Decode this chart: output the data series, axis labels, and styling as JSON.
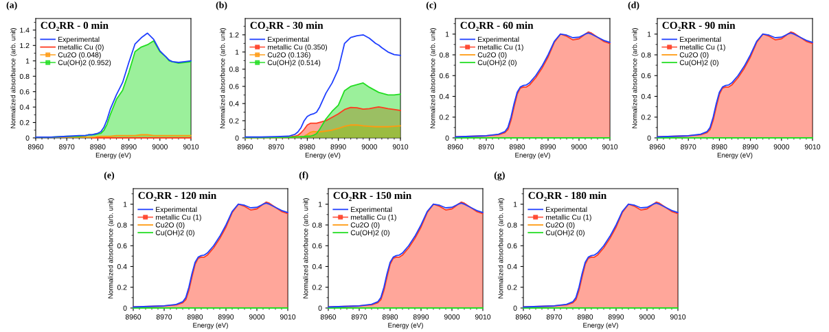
{
  "chart_data": [
    {
      "type": "area",
      "title": "CO₂RR - 0 min",
      "annotations": [
        "(a)"
      ],
      "xlabel": "Energy (eV)",
      "ylabel": "Normalized absorbance (arb. unit)",
      "legend": "top left",
      "x": [
        8960,
        8965,
        8970,
        8974,
        8976,
        8977,
        8978,
        8979,
        8980,
        8981,
        8982,
        8983,
        8984,
        8986,
        8988,
        8990,
        8992,
        8994,
        8996,
        8998,
        9000,
        9002,
        9003,
        9004,
        9006,
        9008,
        9010
      ],
      "xlim": [
        8960,
        9010
      ],
      "xticks": [
        8960,
        8970,
        8980,
        8990,
        9000,
        9010
      ],
      "ylim": [
        0,
        1.55
      ],
      "yticks": [
        0,
        0.2,
        0.4,
        0.6,
        0.8,
        1,
        1.2,
        1.4
      ],
      "series": [
        {
          "name": "Experimental",
          "type": "line",
          "color": "#1f3fff",
          "values": [
            0.01,
            0.01,
            0.02,
            0.03,
            0.03,
            0.04,
            0.04,
            0.05,
            0.06,
            0.08,
            0.14,
            0.24,
            0.37,
            0.56,
            0.72,
            0.98,
            1.22,
            1.3,
            1.36,
            1.28,
            1.13,
            1.05,
            1.01,
            0.99,
            0.98,
            0.99,
            1.0
          ]
        },
        {
          "name": "metallic Cu (0)",
          "type": "line",
          "color": "#ff3a1f",
          "values": [
            null,
            null,
            null,
            null,
            null,
            null,
            0,
            0,
            0,
            0,
            0,
            0,
            0,
            0,
            0,
            0,
            0,
            0,
            0,
            0,
            0,
            0,
            0,
            0,
            0,
            0,
            0
          ]
        },
        {
          "name": "Cu2O (0.048)",
          "color": "#ff9a10",
          "values": [
            0.01,
            0.01,
            0.01,
            0.01,
            0.01,
            0.01,
            0.01,
            0.01,
            0.02,
            0.02,
            0.02,
            0.02,
            0.02,
            0.03,
            0.03,
            0.03,
            0.03,
            0.04,
            0.04,
            0.03,
            0.03,
            0.03,
            0.03,
            0.03,
            0.03,
            0.03,
            0.03
          ]
        },
        {
          "name": "Cu(OH)2 (0.952)",
          "color": "#22dd22",
          "values": [
            0.01,
            0.01,
            0.02,
            0.02,
            0.03,
            0.04,
            0.04,
            0.04,
            0.05,
            0.06,
            0.1,
            0.18,
            0.3,
            0.5,
            0.62,
            0.85,
            1.12,
            1.18,
            1.21,
            1.26,
            1.12,
            1.05,
            1.0,
            0.99,
            0.97,
            0.98,
            0.99
          ]
        }
      ]
    },
    {
      "type": "area",
      "title": "CO₂RR - 30 min",
      "annotations": [
        "(b)"
      ],
      "xlabel": "Energy (eV)",
      "ylabel": "Normalized absorbance (arb. unit)",
      "legend": "top left",
      "x": [
        8960,
        8965,
        8970,
        8974,
        8976,
        8977,
        8978,
        8979,
        8980,
        8981,
        8982,
        8983,
        8984,
        8986,
        8988,
        8990,
        8992,
        8994,
        8996,
        8998,
        9000,
        9002,
        9003,
        9004,
        9006,
        9008,
        9010
      ],
      "xlim": [
        8960,
        9010
      ],
      "xticks": [
        8960,
        8970,
        8980,
        8990,
        9000,
        9010
      ],
      "ylim": [
        0,
        1.39
      ],
      "yticks": [
        0,
        0.2,
        0.4,
        0.6,
        0.8,
        1,
        1.2
      ],
      "series": [
        {
          "name": "Experimental",
          "type": "line",
          "color": "#1f3fff",
          "values": [
            0.01,
            0.01,
            0.015,
            0.02,
            0.04,
            0.07,
            0.12,
            0.2,
            0.25,
            0.27,
            0.28,
            0.3,
            0.36,
            0.52,
            0.64,
            0.8,
            1.1,
            1.17,
            1.19,
            1.2,
            1.16,
            1.1,
            1.08,
            1.05,
            1.0,
            0.97,
            0.96
          ]
        },
        {
          "name": "metallic Cu (0.350)",
          "color": "#ff3a1f",
          "values": [
            0.003,
            0.005,
            0.007,
            0.01,
            0.02,
            0.03,
            0.06,
            0.1,
            0.15,
            0.17,
            0.17,
            0.17,
            0.18,
            0.2,
            0.24,
            0.28,
            0.33,
            0.355,
            0.35,
            0.335,
            0.34,
            0.355,
            0.36,
            0.355,
            0.34,
            0.33,
            0.32
          ]
        },
        {
          "name": "Cu2O (0.136)",
          "color": "#ff9a10",
          "values": [
            0.002,
            0.003,
            0.004,
            0.005,
            0.006,
            0.007,
            0.01,
            0.02,
            0.04,
            0.065,
            0.075,
            0.07,
            0.07,
            0.08,
            0.09,
            0.11,
            0.135,
            0.15,
            0.15,
            0.14,
            0.135,
            0.13,
            0.13,
            0.13,
            0.13,
            0.135,
            0.14
          ]
        },
        {
          "name": "Cu(OH)2 (0.514)",
          "color": "#22dd22",
          "values": [
            0.003,
            0.004,
            0.005,
            0.007,
            0.01,
            0.012,
            0.014,
            0.016,
            0.02,
            0.02,
            0.03,
            0.05,
            0.1,
            0.22,
            0.31,
            0.38,
            0.55,
            0.6,
            0.62,
            0.64,
            0.59,
            0.55,
            0.53,
            0.52,
            0.5,
            0.5,
            0.51
          ]
        }
      ]
    },
    {
      "type": "area",
      "title": "CO₂RR - 60 min",
      "annotations": [
        "(c)"
      ],
      "xlabel": "Energy (eV)",
      "ylabel": "Normalized absorbance (arb. unit)",
      "legend": "top left",
      "x": [
        8960,
        8965,
        8970,
        8974,
        8976,
        8977,
        8978,
        8979,
        8980,
        8981,
        8982,
        8983,
        8984,
        8986,
        8988,
        8990,
        8992,
        8994,
        8996,
        8998,
        9000,
        9002,
        9003,
        9004,
        9006,
        9008,
        9010
      ],
      "xlim": [
        8960,
        9010
      ],
      "xticks": [
        8960,
        8970,
        8980,
        8990,
        9000,
        9010
      ],
      "ylim": [
        0,
        1.15
      ],
      "yticks": [
        0,
        0.2,
        0.4,
        0.6,
        0.8,
        1
      ],
      "series": [
        {
          "name": "Experimental",
          "type": "line",
          "color": "#1f3fff",
          "values": [
            0.01,
            0.015,
            0.02,
            0.035,
            0.06,
            0.1,
            0.2,
            0.33,
            0.44,
            0.49,
            0.505,
            0.51,
            0.53,
            0.6,
            0.69,
            0.8,
            0.93,
            1.0,
            0.99,
            0.965,
            0.97,
            1.0,
            1.01,
            1.0,
            0.97,
            0.94,
            0.92
          ]
        },
        {
          "name": "metallic Cu (1)",
          "color": "#ff3a1f",
          "values": [
            0.01,
            0.015,
            0.02,
            0.03,
            0.05,
            0.08,
            0.17,
            0.3,
            0.42,
            0.48,
            0.49,
            0.49,
            0.51,
            0.58,
            0.67,
            0.78,
            0.92,
            1.0,
            0.98,
            0.945,
            0.955,
            1.0,
            1.02,
            1.01,
            0.97,
            0.93,
            0.91
          ]
        },
        {
          "name": "Cu2O (0)",
          "type": "line",
          "color": "#ff9a10",
          "values": [
            null,
            null,
            null,
            null,
            null,
            null,
            null,
            null,
            null,
            null,
            null,
            null,
            null,
            null,
            null,
            null,
            null,
            null,
            null,
            null,
            null,
            null,
            null,
            null,
            null,
            null,
            null
          ]
        },
        {
          "name": "Cu(OH)2 (0)",
          "type": "line",
          "color": "#22dd22",
          "values": [
            0,
            0,
            0,
            0,
            0,
            0,
            0,
            0,
            0,
            0,
            0,
            0,
            0,
            0,
            0,
            0,
            0,
            0,
            0,
            0,
            0,
            0,
            0,
            0,
            0,
            0,
            0
          ]
        }
      ]
    },
    {
      "type": "area",
      "title": "CO₂RR - 90 min",
      "annotations": [
        "(d)"
      ],
      "xlabel": "Energy (eV)",
      "ylabel": "Normalized absorbance (arb. unit)",
      "legend": "top left",
      "x": [
        8960,
        8965,
        8970,
        8974,
        8976,
        8977,
        8978,
        8979,
        8980,
        8981,
        8982,
        8983,
        8984,
        8986,
        8988,
        8990,
        8992,
        8994,
        8996,
        8998,
        9000,
        9002,
        9003,
        9004,
        9006,
        9008,
        9010
      ],
      "xlim": [
        8960,
        9010
      ],
      "xticks": [
        8960,
        8970,
        8980,
        8990,
        9000,
        9010
      ],
      "ylim": [
        0,
        1.15
      ],
      "yticks": [
        0,
        0.2,
        0.4,
        0.6,
        0.8,
        1
      ],
      "series": [
        {
          "name": "Experimental",
          "type": "line",
          "color": "#1f3fff",
          "values": [
            0.01,
            0.015,
            0.02,
            0.035,
            0.06,
            0.1,
            0.2,
            0.33,
            0.44,
            0.49,
            0.505,
            0.51,
            0.53,
            0.6,
            0.69,
            0.8,
            0.93,
            1.0,
            0.99,
            0.965,
            0.97,
            1.0,
            1.01,
            1.0,
            0.97,
            0.94,
            0.92
          ]
        },
        {
          "name": "metallic Cu (1)",
          "color": "#ff3a1f",
          "values": [
            0.01,
            0.015,
            0.02,
            0.03,
            0.05,
            0.08,
            0.17,
            0.3,
            0.42,
            0.48,
            0.49,
            0.49,
            0.51,
            0.58,
            0.67,
            0.78,
            0.92,
            1.0,
            0.98,
            0.945,
            0.955,
            1.0,
            1.02,
            1.01,
            0.97,
            0.93,
            0.91
          ]
        },
        {
          "name": "Cu2O (0)",
          "type": "line",
          "color": "#ff9a10",
          "values": [
            null,
            null,
            null,
            null,
            null,
            null,
            null,
            null,
            null,
            null,
            null,
            null,
            null,
            null,
            null,
            null,
            null,
            null,
            null,
            null,
            null,
            null,
            null,
            null,
            null,
            null,
            null
          ]
        },
        {
          "name": "Cu(OH)2 (0)",
          "type": "line",
          "color": "#22dd22",
          "values": [
            0,
            0,
            0,
            0,
            0,
            0,
            0,
            0,
            0,
            0,
            0,
            0,
            0,
            0,
            0,
            0,
            0,
            0,
            0,
            0,
            0,
            0,
            0,
            0,
            0,
            0,
            0
          ]
        }
      ]
    },
    {
      "type": "area",
      "title": "CO₂RR - 120 min",
      "annotations": [
        "(e)"
      ],
      "xlabel": "Energy (eV)",
      "ylabel": "Normalized absorbance (arb. unit)",
      "legend": "top left",
      "x": [
        8960,
        8965,
        8970,
        8974,
        8976,
        8977,
        8978,
        8979,
        8980,
        8981,
        8982,
        8983,
        8984,
        8986,
        8988,
        8990,
        8992,
        8994,
        8996,
        8998,
        9000,
        9002,
        9003,
        9004,
        9006,
        9008,
        9010
      ],
      "xlim": [
        8960,
        9010
      ],
      "xticks": [
        8960,
        8970,
        8980,
        8990,
        9000,
        9010
      ],
      "ylim": [
        0,
        1.15
      ],
      "yticks": [
        0,
        0.2,
        0.4,
        0.6,
        0.8,
        1
      ],
      "series": [
        {
          "name": "Experimental",
          "type": "line",
          "color": "#1f3fff",
          "values": [
            0.01,
            0.015,
            0.02,
            0.035,
            0.06,
            0.1,
            0.2,
            0.33,
            0.44,
            0.49,
            0.505,
            0.51,
            0.53,
            0.6,
            0.69,
            0.8,
            0.93,
            1.0,
            0.99,
            0.965,
            0.97,
            1.0,
            1.01,
            1.0,
            0.97,
            0.94,
            0.92
          ]
        },
        {
          "name": "metallic Cu (1)",
          "color": "#ff3a1f",
          "values": [
            0.01,
            0.015,
            0.02,
            0.03,
            0.05,
            0.08,
            0.17,
            0.3,
            0.42,
            0.48,
            0.49,
            0.49,
            0.51,
            0.58,
            0.67,
            0.78,
            0.92,
            1.0,
            0.98,
            0.945,
            0.955,
            1.0,
            1.02,
            1.01,
            0.97,
            0.93,
            0.91
          ]
        },
        {
          "name": "Cu2O (0)",
          "type": "line",
          "color": "#ff9a10",
          "values": [
            null,
            null,
            null,
            null,
            null,
            null,
            null,
            null,
            null,
            null,
            null,
            null,
            null,
            null,
            null,
            null,
            null,
            null,
            null,
            null,
            null,
            null,
            null,
            null,
            null,
            null,
            null
          ]
        },
        {
          "name": "Cu(OH)2 (0)",
          "type": "line",
          "color": "#22dd22",
          "values": [
            0,
            0,
            0,
            0,
            0,
            0,
            0,
            0,
            0,
            0,
            0,
            0,
            0,
            0,
            0,
            0,
            0,
            0,
            0,
            0,
            0,
            0,
            0,
            0,
            0,
            0,
            0
          ]
        }
      ]
    },
    {
      "type": "area",
      "title": "CO₂RR - 150 min",
      "annotations": [
        "(f)"
      ],
      "xlabel": "Energy (eV)",
      "ylabel": "Normalized absorbance (arb. unit)",
      "legend": "top left",
      "x": [
        8960,
        8965,
        8970,
        8974,
        8976,
        8977,
        8978,
        8979,
        8980,
        8981,
        8982,
        8983,
        8984,
        8986,
        8988,
        8990,
        8992,
        8994,
        8996,
        8998,
        9000,
        9002,
        9003,
        9004,
        9006,
        9008,
        9010
      ],
      "xlim": [
        8960,
        9010
      ],
      "xticks": [
        8960,
        8970,
        8980,
        8990,
        9000,
        9010
      ],
      "ylim": [
        0,
        1.15
      ],
      "yticks": [
        0,
        0.2,
        0.4,
        0.6,
        0.8,
        1
      ],
      "series": [
        {
          "name": "Experimental",
          "type": "line",
          "color": "#1f3fff",
          "values": [
            0.01,
            0.015,
            0.02,
            0.035,
            0.06,
            0.1,
            0.2,
            0.33,
            0.44,
            0.49,
            0.505,
            0.51,
            0.53,
            0.6,
            0.69,
            0.8,
            0.93,
            1.0,
            0.99,
            0.965,
            0.97,
            1.0,
            1.01,
            1.0,
            0.97,
            0.94,
            0.92
          ]
        },
        {
          "name": "metallic Cu (1)",
          "color": "#ff3a1f",
          "values": [
            0.01,
            0.015,
            0.02,
            0.03,
            0.05,
            0.08,
            0.17,
            0.3,
            0.42,
            0.48,
            0.49,
            0.49,
            0.51,
            0.58,
            0.67,
            0.78,
            0.92,
            1.0,
            0.98,
            0.945,
            0.955,
            1.0,
            1.02,
            1.01,
            0.97,
            0.93,
            0.91
          ]
        },
        {
          "name": "Cu2O (0)",
          "type": "line",
          "color": "#ff9a10",
          "values": [
            null,
            null,
            null,
            null,
            null,
            null,
            null,
            null,
            null,
            null,
            null,
            null,
            null,
            null,
            null,
            null,
            null,
            null,
            null,
            null,
            null,
            null,
            null,
            null,
            null,
            null,
            null
          ]
        },
        {
          "name": "Cu(OH)2 (0)",
          "type": "line",
          "color": "#22dd22",
          "values": [
            0,
            0,
            0,
            0,
            0,
            0,
            0,
            0,
            0,
            0,
            0,
            0,
            0,
            0,
            0,
            0,
            0,
            0,
            0,
            0,
            0,
            0,
            0,
            0,
            0,
            0,
            0
          ]
        }
      ]
    },
    {
      "type": "area",
      "title": "CO₂RR - 180 min",
      "annotations": [
        "(g)"
      ],
      "xlabel": "Energy (eV)",
      "ylabel": "Normalized absorbance (arb. unit)",
      "legend": "top left",
      "x": [
        8960,
        8965,
        8970,
        8974,
        8976,
        8977,
        8978,
        8979,
        8980,
        8981,
        8982,
        8983,
        8984,
        8986,
        8988,
        8990,
        8992,
        8994,
        8996,
        8998,
        9000,
        9002,
        9003,
        9004,
        9006,
        9008,
        9010
      ],
      "xlim": [
        8960,
        9010
      ],
      "xticks": [
        8960,
        8970,
        8980,
        8990,
        9000,
        9010
      ],
      "ylim": [
        0,
        1.15
      ],
      "yticks": [
        0,
        0.2,
        0.4,
        0.6,
        0.8,
        1
      ],
      "series": [
        {
          "name": "Experimental",
          "type": "line",
          "color": "#1f3fff",
          "values": [
            0.01,
            0.015,
            0.02,
            0.035,
            0.06,
            0.1,
            0.2,
            0.33,
            0.44,
            0.49,
            0.505,
            0.51,
            0.53,
            0.6,
            0.69,
            0.8,
            0.93,
            1.0,
            0.99,
            0.965,
            0.97,
            1.0,
            1.01,
            1.0,
            0.97,
            0.94,
            0.92
          ]
        },
        {
          "name": "metallic Cu (1)",
          "color": "#ff3a1f",
          "values": [
            0.01,
            0.015,
            0.02,
            0.03,
            0.05,
            0.08,
            0.17,
            0.3,
            0.42,
            0.48,
            0.49,
            0.49,
            0.51,
            0.58,
            0.67,
            0.78,
            0.92,
            1.0,
            0.98,
            0.945,
            0.955,
            1.0,
            1.02,
            1.01,
            0.97,
            0.93,
            0.91
          ]
        },
        {
          "name": "Cu2O (0)",
          "type": "line",
          "color": "#ff9a10",
          "values": [
            null,
            null,
            null,
            null,
            null,
            null,
            null,
            null,
            null,
            null,
            null,
            null,
            null,
            null,
            null,
            null,
            null,
            null,
            null,
            null,
            null,
            null,
            null,
            null,
            null,
            null,
            null
          ]
        },
        {
          "name": "Cu(OH)2 (0)",
          "type": "line",
          "color": "#22dd22",
          "values": [
            0,
            0,
            0,
            0,
            0,
            0,
            0,
            0,
            0,
            0,
            0,
            0,
            0,
            0,
            0,
            0,
            0,
            0,
            0,
            0,
            0,
            0,
            0,
            0,
            0,
            0,
            0
          ]
        }
      ]
    }
  ]
}
